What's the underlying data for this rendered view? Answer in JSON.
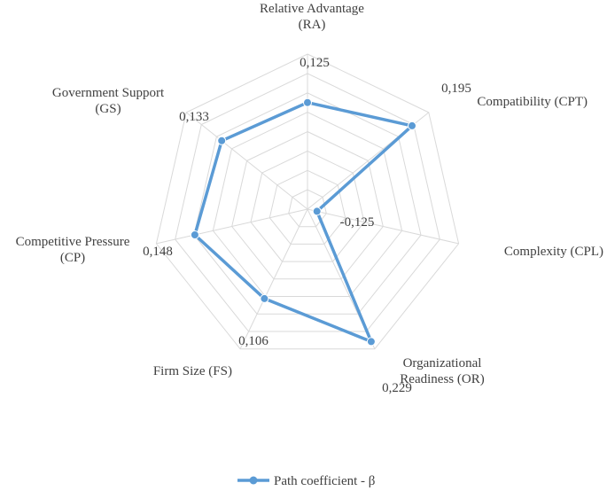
{
  "chart_data": {
    "type": "radar",
    "axes": [
      {
        "label_lines": [
          "Relative Advantage",
          "(RA)"
        ]
      },
      {
        "label_lines": [
          "Compatibility (CPT)"
        ]
      },
      {
        "label_lines": [
          "Complexity (CPL)"
        ]
      },
      {
        "label_lines": [
          "Organizational",
          "Readiness (OR)"
        ]
      },
      {
        "label_lines": [
          "Firm Size (FS)"
        ]
      },
      {
        "label_lines": [
          "Competitive Pressure",
          "(CP)"
        ]
      },
      {
        "label_lines": [
          "Government Support",
          "(GS)"
        ]
      }
    ],
    "series": [
      {
        "name": "Path coefficient - β",
        "values": [
          0.125,
          0.195,
          -0.125,
          0.229,
          0.106,
          0.148,
          0.133
        ],
        "value_labels": [
          "0,125",
          "0,195",
          "-0,125",
          "0,229",
          "0,106",
          "0,148",
          "0,133"
        ]
      }
    ],
    "rlim": [
      -0.15,
      0.25
    ],
    "grid_levels": 8,
    "grid": true,
    "legend_position": "bottom",
    "colors": {
      "series": "#5b9bd5",
      "grid": "#d9d9d9",
      "text": "#404040"
    }
  }
}
